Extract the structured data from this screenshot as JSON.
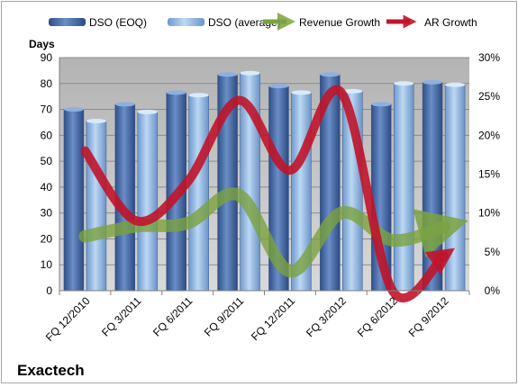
{
  "company": "Exactech",
  "legend": {
    "dso_eoq": "DSO (EOQ)",
    "dso_avg": "DSO (average)",
    "revenue_growth": "Revenue Growth",
    "ar_growth": "AR Growth"
  },
  "colors": {
    "dso_eoq": "#5a7db8",
    "dso_avg": "#9dc0e8",
    "revenue_growth": "#7ba23f",
    "ar_growth": "#c0142a",
    "plot_bg": "#c0c0c0"
  },
  "chart_data": {
    "type": "bar",
    "categories": [
      "FQ 12/2010",
      "FQ 3/2011",
      "FQ 6/2011",
      "FQ 9/2011",
      "FQ 12/2011",
      "FQ 3/2012",
      "FQ 6/2012",
      "FQ 9/2012"
    ],
    "series": [
      {
        "name": "DSO (EOQ)",
        "axis": "left",
        "type": "bar",
        "values": [
          70,
          72,
          76.5,
          83.5,
          79,
          83.5,
          72,
          80.5
        ]
      },
      {
        "name": "DSO (average)",
        "axis": "left",
        "type": "bar",
        "values": [
          65.5,
          69,
          75.5,
          84,
          76.5,
          77,
          80,
          79.5
        ]
      },
      {
        "name": "Revenue Growth",
        "axis": "right",
        "type": "line",
        "unit": "%",
        "values": [
          7,
          8.3,
          8.7,
          12.3,
          2.5,
          10,
          6.5,
          8.2
        ]
      },
      {
        "name": "AR Growth",
        "axis": "right",
        "type": "line",
        "unit": "%",
        "values": [
          18,
          9,
          14,
          24.5,
          15.5,
          25.5,
          0,
          4.5
        ]
      }
    ],
    "ylabel": "Days",
    "ylim": [
      0,
      90
    ],
    "yticks": [
      "0",
      "10",
      "20",
      "30",
      "40",
      "50",
      "60",
      "70",
      "80",
      "90"
    ],
    "y2lim": [
      0,
      30
    ],
    "y2ticks": [
      "0%",
      "5%",
      "10%",
      "15%",
      "20%",
      "25%",
      "30%"
    ],
    "grid": true,
    "legend_position": "top"
  }
}
